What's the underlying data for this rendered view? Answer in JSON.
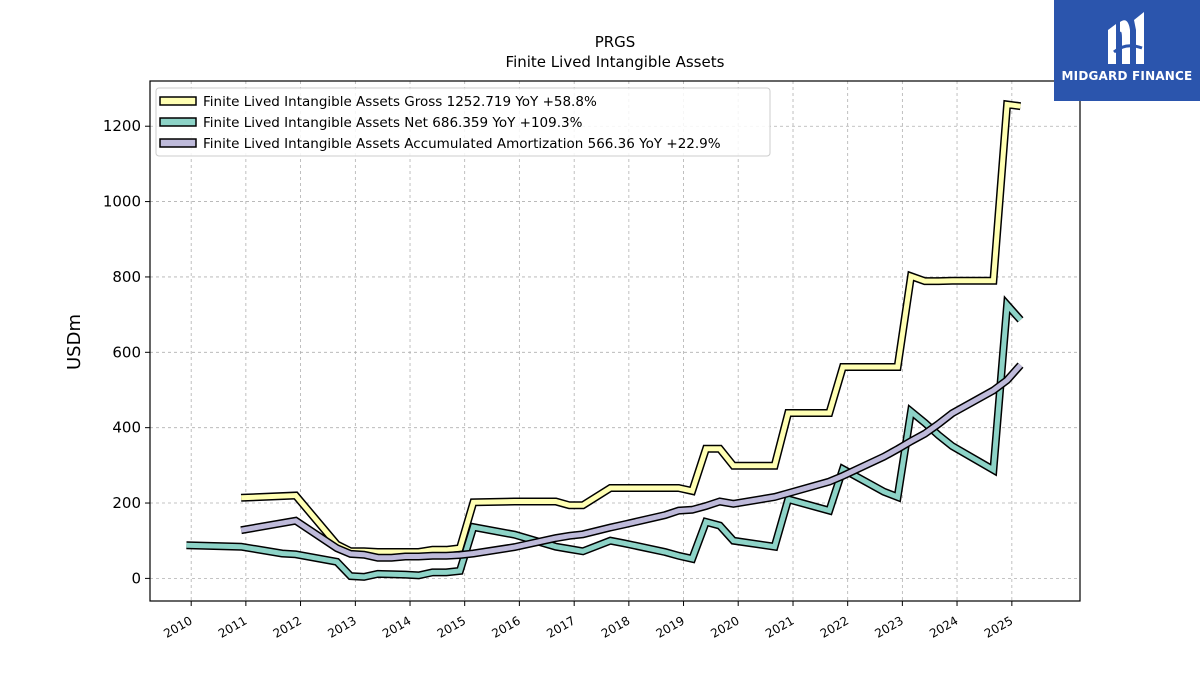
{
  "chart_data": {
    "type": "line",
    "title": "PRGS",
    "subtitle": "Finite Lived Intangible Assets",
    "xlabel": "",
    "ylabel": "USDm",
    "xlim": [
      "2009-04-01",
      "2026-04-01"
    ],
    "ylim": [
      -60,
      1320
    ],
    "y_ticks": [
      0,
      200,
      400,
      600,
      800,
      1000,
      1200
    ],
    "x_ticks": [
      "2010",
      "2011",
      "2012",
      "2013",
      "2014",
      "2015",
      "2016",
      "2017",
      "2018",
      "2019",
      "2020",
      "2021",
      "2022",
      "2023",
      "2024",
      "2025"
    ],
    "grid": true,
    "legend_position": "top-left",
    "series": [
      {
        "name": "Finite Lived Intangible Assets Gross",
        "legend_label": "Finite Lived Intangible Assets Gross  1252.719 YoY +58.8%",
        "color": "#ffffb3",
        "points": [
          [
            "2010-11-30",
            214
          ],
          [
            "2011-11-30",
            220
          ],
          [
            "2012-08-31",
            90
          ],
          [
            "2012-11-30",
            72
          ],
          [
            "2013-02-28",
            72
          ],
          [
            "2013-05-31",
            70
          ],
          [
            "2013-08-31",
            70
          ],
          [
            "2013-11-30",
            70
          ],
          [
            "2014-02-28",
            70
          ],
          [
            "2014-05-31",
            76
          ],
          [
            "2014-08-31",
            76
          ],
          [
            "2014-11-30",
            80
          ],
          [
            "2015-02-28",
            202
          ],
          [
            "2015-11-30",
            204
          ],
          [
            "2016-08-31",
            204
          ],
          [
            "2016-11-30",
            194
          ],
          [
            "2017-02-28",
            194
          ],
          [
            "2017-08-31",
            240
          ],
          [
            "2017-11-30",
            240
          ],
          [
            "2018-08-31",
            240
          ],
          [
            "2018-11-30",
            240
          ],
          [
            "2019-02-28",
            232
          ],
          [
            "2019-05-31",
            344
          ],
          [
            "2019-08-31",
            344
          ],
          [
            "2019-11-30",
            299
          ],
          [
            "2020-08-31",
            299
          ],
          [
            "2020-11-30",
            439
          ],
          [
            "2021-08-31",
            439
          ],
          [
            "2021-11-30",
            561
          ],
          [
            "2022-08-31",
            561
          ],
          [
            "2022-11-30",
            561
          ],
          [
            "2023-02-28",
            802
          ],
          [
            "2023-05-31",
            789
          ],
          [
            "2023-08-31",
            789
          ],
          [
            "2023-11-30",
            790
          ],
          [
            "2024-08-31",
            790
          ],
          [
            "2024-11-30",
            1258
          ],
          [
            "2025-02-28",
            1253
          ]
        ]
      },
      {
        "name": "Finite Lived Intangible Assets Net",
        "legend_label": "Finite Lived Intangible Assets Net  686.359 YoY +109.3%",
        "color": "#8dd3c7",
        "points": [
          [
            "2009-11-30",
            88
          ],
          [
            "2010-11-30",
            84
          ],
          [
            "2011-08-31",
            66
          ],
          [
            "2011-11-30",
            64
          ],
          [
            "2012-08-31",
            44
          ],
          [
            "2012-11-30",
            6
          ],
          [
            "2013-02-28",
            4
          ],
          [
            "2013-05-31",
            12
          ],
          [
            "2013-08-31",
            11
          ],
          [
            "2013-11-30",
            10
          ],
          [
            "2014-02-28",
            8
          ],
          [
            "2014-05-31",
            16
          ],
          [
            "2014-08-31",
            16
          ],
          [
            "2014-11-30",
            20
          ],
          [
            "2015-02-28",
            136
          ],
          [
            "2015-11-30",
            116
          ],
          [
            "2016-08-31",
            84
          ],
          [
            "2016-11-30",
            78
          ],
          [
            "2017-02-28",
            72
          ],
          [
            "2017-08-31",
            100
          ],
          [
            "2017-11-30",
            93
          ],
          [
            "2018-08-31",
            70
          ],
          [
            "2018-11-30",
            60
          ],
          [
            "2019-02-28",
            52
          ],
          [
            "2019-05-31",
            150
          ],
          [
            "2019-08-31",
            140
          ],
          [
            "2019-11-30",
            100
          ],
          [
            "2020-08-31",
            84
          ],
          [
            "2020-11-30",
            210
          ],
          [
            "2021-08-31",
            180
          ],
          [
            "2021-11-30",
            290
          ],
          [
            "2022-08-31",
            230
          ],
          [
            "2022-11-30",
            216
          ],
          [
            "2023-02-28",
            443
          ],
          [
            "2023-05-31",
            413
          ],
          [
            "2023-08-31",
            380
          ],
          [
            "2023-11-30",
            351
          ],
          [
            "2024-08-31",
            288
          ],
          [
            "2024-11-30",
            726
          ],
          [
            "2025-02-28",
            686
          ]
        ]
      },
      {
        "name": "Finite Lived Intangible Assets Accumulated Amortization",
        "legend_label": "Finite Lived Intangible Assets Accumulated Amortization  566.36 YoY +22.9%",
        "color": "#bebada",
        "points": [
          [
            "2010-11-30",
            128
          ],
          [
            "2011-11-30",
            153
          ],
          [
            "2012-08-31",
            80
          ],
          [
            "2012-11-30",
            65
          ],
          [
            "2013-02-28",
            63
          ],
          [
            "2013-05-31",
            55
          ],
          [
            "2013-08-31",
            55
          ],
          [
            "2013-11-30",
            58
          ],
          [
            "2014-02-28",
            58
          ],
          [
            "2014-05-31",
            60
          ],
          [
            "2014-08-31",
            60
          ],
          [
            "2014-11-30",
            62
          ],
          [
            "2015-02-28",
            66
          ],
          [
            "2015-11-30",
            83
          ],
          [
            "2016-08-31",
            107
          ],
          [
            "2016-11-30",
            113
          ],
          [
            "2017-02-28",
            117
          ],
          [
            "2017-08-31",
            135
          ],
          [
            "2017-11-30",
            143
          ],
          [
            "2018-08-31",
            168
          ],
          [
            "2018-11-30",
            180
          ],
          [
            "2019-02-28",
            182
          ],
          [
            "2019-05-31",
            192
          ],
          [
            "2019-08-31",
            204
          ],
          [
            "2019-11-30",
            198
          ],
          [
            "2020-08-31",
            216
          ],
          [
            "2020-11-30",
            226
          ],
          [
            "2021-08-31",
            257
          ],
          [
            "2021-11-30",
            272
          ],
          [
            "2022-08-31",
            323
          ],
          [
            "2022-11-30",
            343
          ],
          [
            "2023-02-28",
            364
          ],
          [
            "2023-05-31",
            384
          ],
          [
            "2023-08-31",
            410
          ],
          [
            "2023-11-30",
            438
          ],
          [
            "2024-08-31",
            499
          ],
          [
            "2024-11-30",
            526
          ],
          [
            "2025-02-28",
            566
          ]
        ]
      }
    ]
  },
  "logo": {
    "text": "MIDGARD FINANCE",
    "background": "#2b55ad"
  }
}
